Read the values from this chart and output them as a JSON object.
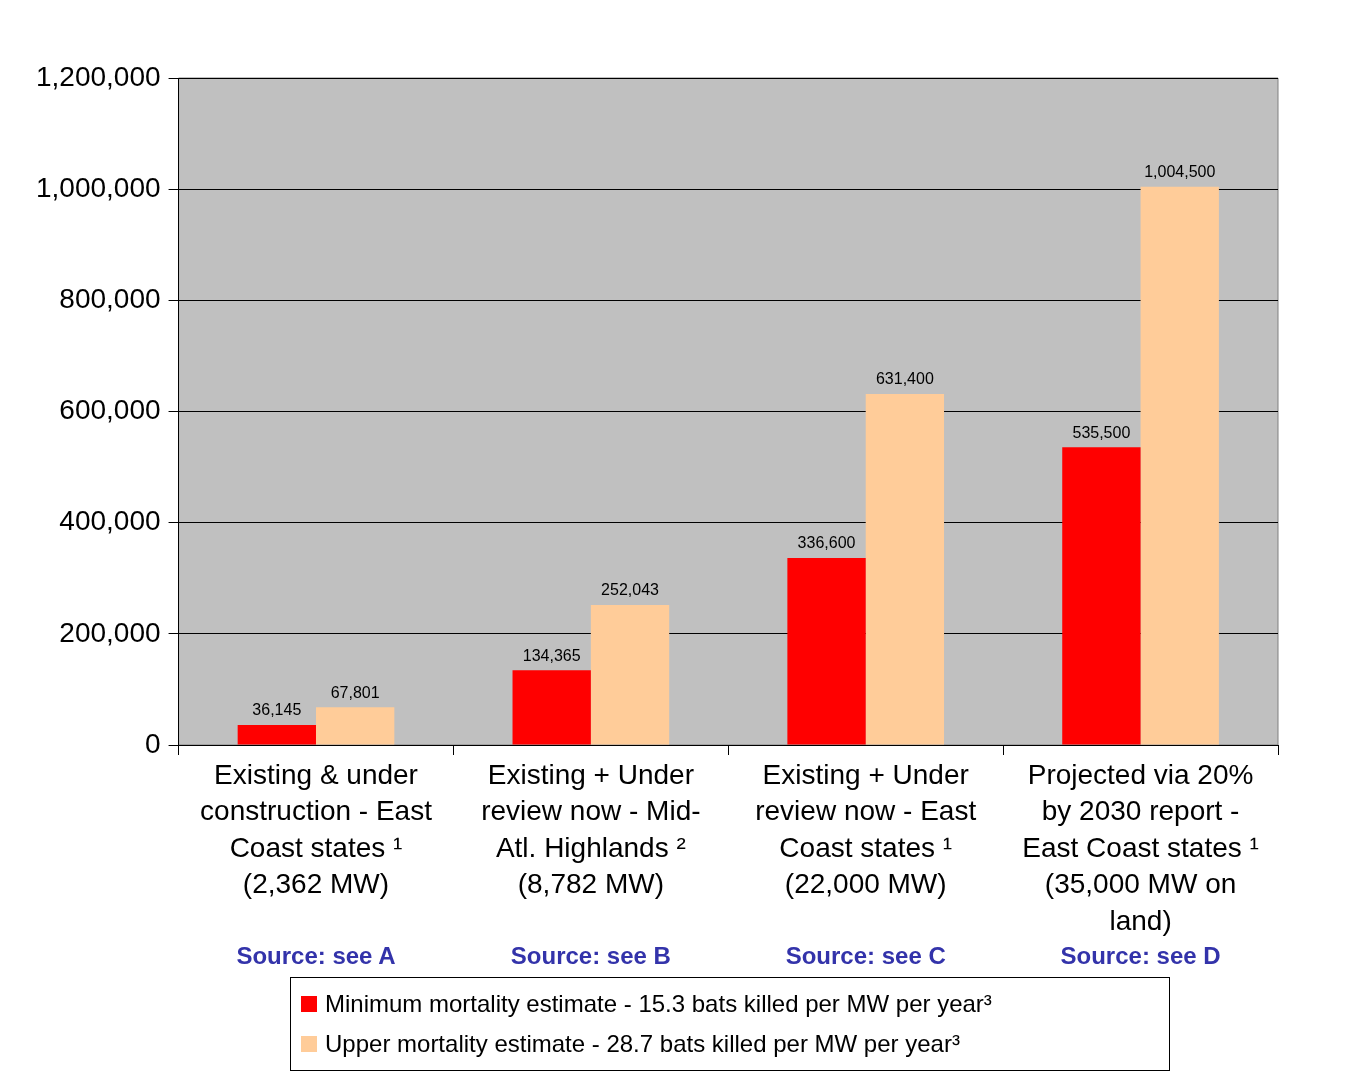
{
  "chart_data": {
    "type": "bar",
    "categories": [
      "Existing & under\nconstruction - East\nCoast states ¹\n(2,362 MW)",
      "Existing + Under\nreview now - Mid-\nAtl. Highlands ²\n(8,782 MW)",
      "Existing + Under\nreview now - East\nCoast states ¹\n(22,000 MW)",
      "Projected via 20%\nby 2030 report -\nEast Coast states ¹\n(35,000 MW on\nland)"
    ],
    "series": [
      {
        "name": "Minimum mortality estimate - 15.3 bats killed per MW per year³",
        "color": "#ff0000",
        "values": [
          36145,
          134365,
          336600,
          535500
        ],
        "value_labels": [
          "36,145",
          "134,365",
          "336,600",
          "535,500"
        ]
      },
      {
        "name": "Upper mortality estimate - 28.7 bats killed per MW per year³",
        "color": "#ffcc99",
        "values": [
          67801,
          252043,
          631400,
          1004500
        ],
        "value_labels": [
          "67,801",
          "252,043",
          "631,400",
          "1,004,500"
        ]
      }
    ],
    "ylim": [
      0,
      1200000
    ],
    "yticks": [
      {
        "value": 0,
        "label": "0"
      },
      {
        "value": 200000,
        "label": "200,000"
      },
      {
        "value": 400000,
        "label": "400,000"
      },
      {
        "value": 600000,
        "label": "600,000"
      },
      {
        "value": 800000,
        "label": "800,000"
      },
      {
        "value": 1000000,
        "label": "1,000,000"
      },
      {
        "value": 1200000,
        "label": "1,200,000"
      }
    ],
    "grid": "y",
    "legend": "bottom",
    "annotations": [
      "Source: see A",
      "Source: see B",
      "Source: see C",
      "Source: see D"
    ]
  }
}
